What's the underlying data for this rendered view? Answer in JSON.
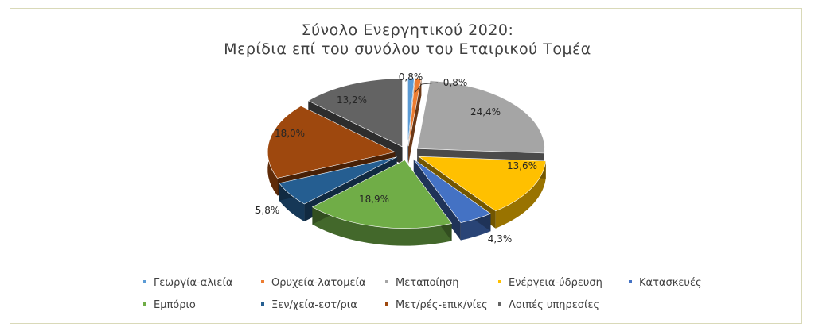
{
  "chart_data": {
    "type": "pie",
    "title": "Σύνολο Ενεργητικού 2020:",
    "subtitle": "Μερίδια επί του συνόλου του Εταιρικού Τομέα",
    "legend_position": "bottom",
    "slices": [
      {
        "name": "Γεωργία-αλιεία",
        "value": 0.8,
        "label": "0,8%",
        "color": "#5B9BD5"
      },
      {
        "name": "Ορυχεία-λατομεία",
        "value": 0.8,
        "label": "0,8%",
        "color": "#ED7D31"
      },
      {
        "name": "Μεταποίηση",
        "value": 24.4,
        "label": "24,4%",
        "color": "#A5A5A5"
      },
      {
        "name": "Ενέργεια-ύδρευση",
        "value": 13.6,
        "label": "13,6%",
        "color": "#FFC000"
      },
      {
        "name": "Κατασκευές",
        "value": 4.3,
        "label": "4,3%",
        "color": "#4472C4"
      },
      {
        "name": "Εμπόριο",
        "value": 18.9,
        "label": "18,9%",
        "color": "#70AD47"
      },
      {
        "name": "Ξεν/χεία-εστ/ρια",
        "value": 5.8,
        "label": "5,8%",
        "color": "#255E91"
      },
      {
        "name": "Μετ/ρές-επικ/νίες",
        "value": 18.0,
        "label": "18,0%",
        "color": "#9E480E"
      },
      {
        "name": "Λοιπές υπηρεσίες",
        "value": 13.2,
        "label": "13,2%",
        "color": "#636363"
      }
    ]
  }
}
